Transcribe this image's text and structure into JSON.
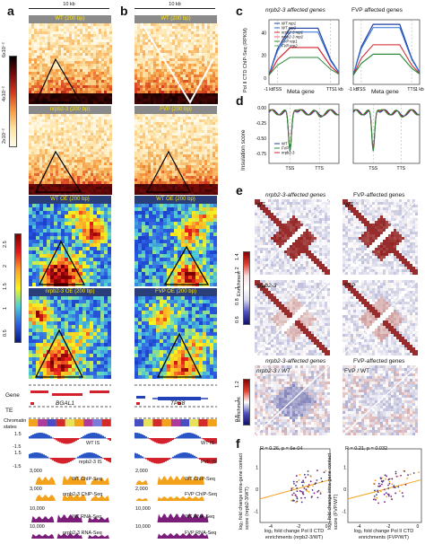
{
  "panels": {
    "a": "a",
    "b": "b",
    "c": "c",
    "d": "d",
    "e": "e",
    "f": "f"
  },
  "scale_10kb": "10 kb",
  "heatmap_titles": {
    "a_wt": "WT (200 bp)",
    "a_mut": "nrpb2-3 (200 bp)",
    "a_wt_oe": "WT OE (200 bp)",
    "a_mut_oe": "nrpb2-3 OE (200 bp)",
    "b_wt": "WT (200 bp)",
    "b_fvp": "FVP (200 bp)",
    "b_wt_oe": "WT OE (200 bp)",
    "b_fvp_oe": "FVP OE (200 bp)"
  },
  "colorbar_top": {
    "ticks": [
      "6x10⁻²",
      "4x10⁻²",
      "2x10⁻²"
    ]
  },
  "colorbar_oe": {
    "ticks": [
      "2.5",
      "2",
      "1.5",
      "1",
      "0.5"
    ]
  },
  "tracks": {
    "gene": "Gene",
    "te": "TE",
    "chromatin": "Chromatin states",
    "gene_a": "BGAL1",
    "gene_b": "TPS8",
    "is_ticks_top": "1.5",
    "is_ticks_bottom": "-1.5",
    "wt_is": "WT IS",
    "mut_is": "nrpb2-3 IS",
    "fvp_is": "FVP IS",
    "chip_a_scale": "3,000",
    "chip_b_scale": "2,000",
    "wt_chip": "WT ChIP-Seq",
    "mut_chip": "nrpb2-3 ChIP-Seq",
    "fvp_chip": "FVP ChIP-Seq",
    "rna_scale": "10,000",
    "wt_rna": "WT RNA-Seq",
    "mut_rna": "nrpb2-3 RNA-Seq",
    "fvp_rna": "FVP RNA-Seq"
  },
  "panel_c": {
    "left_title": "nrpb2-3 affected genes",
    "right_title": "FVP affected genes",
    "ylabel": "Pol II CTD ChIP-Seq (RPKM)",
    "xlabel": "Meta gene",
    "ticks_x": [
      "-1 kb",
      "TSS",
      "TTS",
      "1 kb"
    ],
    "ticks_y": [
      "40",
      "20",
      "0"
    ],
    "legend": [
      "WT rep1",
      "WT rep2",
      "nrpb2-3 rep1",
      "nrpb2-3 rep2",
      "FVP rep1",
      "FVP rep2"
    ]
  },
  "panel_d": {
    "ylabel": "Insulation score",
    "ticks_x": [
      "TSS",
      "TTS"
    ],
    "ticks_y": [
      "0.00",
      "-0.25",
      "-0.50",
      "-0.75"
    ],
    "legend": [
      "WT",
      "FVP",
      "nrpb2-3"
    ]
  },
  "panel_e": {
    "left_title": "nrpb2-3-affected genes",
    "right_title": "FVP-affected genes",
    "left_bottom_title": "nrpb2-3-affected genes",
    "right_bottom_title": "FVP-affected genes",
    "wt": "WT",
    "mut": "nrpb2-3",
    "fvp": "FVP",
    "diff_left": "nrpb2-3 / WT",
    "diff_right": "FVP / WT",
    "enrichment": "Enrichment",
    "cbar_ticks": [
      "1.4",
      "1.2",
      "1",
      "0.8",
      "0.6"
    ],
    "cbar_diff_ticks": [
      "1.2",
      "1",
      "0.8"
    ]
  },
  "panel_f": {
    "left_stat": "R = 0.26, p = 6e-04",
    "right_stat": "R = 0.21, p = 0.032",
    "ylabel": "log₂ fold change intra-gene contact score (nrpb2-3/WT)",
    "ylabel_r": "log₂ fold change intra-gene contact score (FVP/WT)",
    "xlabel": "log₂ fold change Pol II CTD enrichments (nrpb2-3/WT)",
    "xlabel_r": "log₂ fold change Pol II CTD enrichments (FVP/WT)",
    "ticks_x": [
      "-4",
      "-2",
      "0"
    ],
    "ticks_y": [
      "1",
      "0",
      "-1"
    ]
  },
  "colors": {
    "wt": "#1f3fa0",
    "wt2": "#2c6fd6",
    "mut": "#d0202a",
    "fvp": "#2e8b3a",
    "chip": "#f2a21b",
    "rna": "#7b1e7a",
    "is_blue": "#2a55c5",
    "is_red": "#d3222c"
  }
}
